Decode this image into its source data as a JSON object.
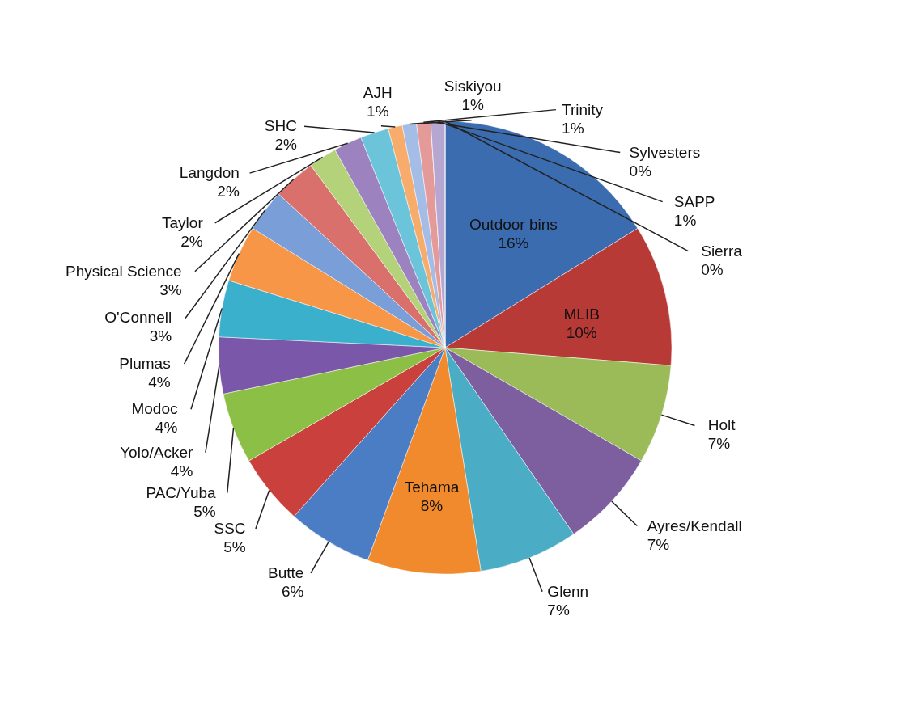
{
  "chart_data": {
    "type": "pie",
    "categories": [
      "Outdoor bins",
      "MLIB",
      "Holt",
      "Ayres/Kendall",
      "Glenn",
      "Tehama",
      "Butte",
      "SSC",
      "PAC/Yuba",
      "Yolo/Acker",
      "Modoc",
      "Plumas",
      "O'Connell",
      "Physical Science",
      "Taylor",
      "Langdon",
      "SHC",
      "AJH",
      "Siskiyou",
      "Trinity",
      "Sylvesters",
      "SAPP",
      "Sierra"
    ],
    "values": [
      16,
      10,
      7,
      7,
      7,
      8,
      6,
      5,
      5,
      4,
      4,
      4,
      3,
      3,
      2,
      2,
      2,
      1,
      1,
      1,
      0,
      1,
      0
    ],
    "value_labels": [
      "16%",
      "10%",
      "7%",
      "7%",
      "7%",
      "8%",
      "6%",
      "5%",
      "5%",
      "4%",
      "4%",
      "4%",
      "3%",
      "3%",
      "2%",
      "2%",
      "2%",
      "1%",
      "1%",
      "1%",
      "0%",
      "1%",
      "0%"
    ],
    "colors": [
      "#3b6cb0",
      "#b83a36",
      "#9bbb59",
      "#7d5fa0",
      "#4bacc6",
      "#f08a2c",
      "#4a7dc4",
      "#c9403c",
      "#8cbf45",
      "#7a57a8",
      "#3bb0cc",
      "#f79646",
      "#7a9fd8",
      "#d9706c",
      "#b4d27a",
      "#9c83c0",
      "#6cc4da",
      "#f8ac6c",
      "#a4bde6",
      "#e49a98",
      "#c6df9e",
      "#b6a6d2",
      "#9cd6e6"
    ],
    "legend": false
  }
}
